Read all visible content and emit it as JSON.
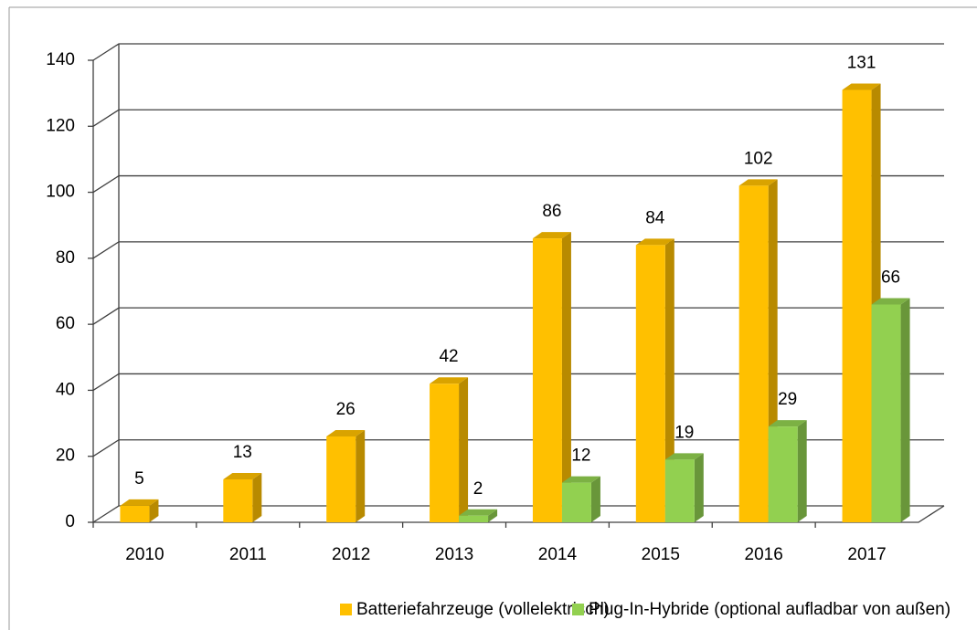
{
  "chart_data": {
    "type": "bar3d",
    "categories": [
      "2010",
      "2011",
      "2012",
      "2013",
      "2014",
      "2015",
      "2016",
      "2017"
    ],
    "series": [
      {
        "name": "Batteriefahrzeuge (vollelektrisch)",
        "color": "#FFC000",
        "values": [
          5,
          13,
          26,
          42,
          86,
          84,
          102,
          131
        ]
      },
      {
        "name": "Plug-In-Hybride (optional aufladbar von außen)",
        "color": "#92D050",
        "values": [
          null,
          null,
          null,
          2,
          12,
          19,
          29,
          66
        ]
      }
    ],
    "ylim": [
      0,
      140
    ],
    "yticks": [
      0,
      20,
      40,
      60,
      80,
      100,
      120,
      140
    ],
    "grid": true,
    "legend": "bottom",
    "data_labels": true
  }
}
